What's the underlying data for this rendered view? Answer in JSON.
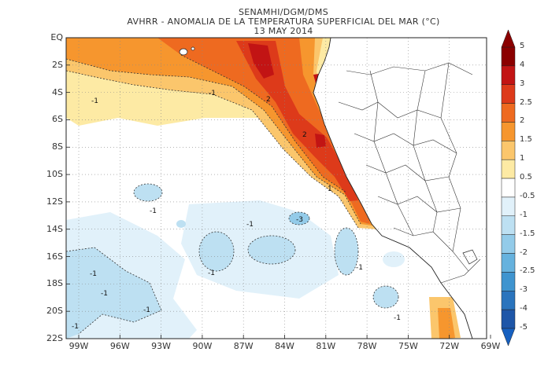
{
  "header": {
    "line1": "SENAMHI/DGM/DMS",
    "line2": "AVHRR - ANOMALIA DE LA TEMPERATURA SUPERFICIAL DEL MAR (°C)",
    "line3": "13 MAY 2014"
  },
  "axes": {
    "lat_labels": [
      "EQ",
      "2S",
      "4S",
      "6S",
      "8S",
      "10S",
      "12S",
      "14S",
      "16S",
      "18S",
      "20S",
      "22S"
    ],
    "lon_labels": [
      "99W",
      "96W",
      "93W",
      "90W",
      "87W",
      "84W",
      "81W",
      "78W",
      "75W",
      "72W",
      "69W"
    ]
  },
  "contour_labels": [
    {
      "text": "-1"
    },
    {
      "text": "-1"
    },
    {
      "text": "2"
    },
    {
      "text": "2"
    },
    {
      "text": "1"
    },
    {
      "text": "-1"
    },
    {
      "text": "-1"
    },
    {
      "text": "-1"
    },
    {
      "text": "-1"
    },
    {
      "text": "-1"
    },
    {
      "text": "-1"
    },
    {
      "text": "-1"
    },
    {
      "text": "-1"
    },
    {
      "text": "-1"
    },
    {
      "text": "-3"
    }
  ],
  "colorbar": {
    "labels": [
      "5",
      "4",
      "3",
      "2.5",
      "2",
      "1.5",
      "1",
      "0.5",
      "-0.5",
      "-1",
      "-1.5",
      "-2",
      "-2.5",
      "-3",
      "-4",
      "-5"
    ],
    "colors": [
      "#8b0000",
      "#c21414",
      "#dd3a1a",
      "#ee6a20",
      "#f6962e",
      "#fbc66c",
      "#fdeaa4",
      "#ffffff",
      "#e1f1fa",
      "#bde0f2",
      "#93cbe9",
      "#66b2de",
      "#3f94cf",
      "#2a74bd",
      "#1e56a8"
    ]
  },
  "legend_range": {
    "min": -5,
    "max": 5
  },
  "map": {
    "extent": {
      "lon_min": -100,
      "lon_max": -68,
      "lat_min": -22,
      "lat_max": 0
    }
  }
}
